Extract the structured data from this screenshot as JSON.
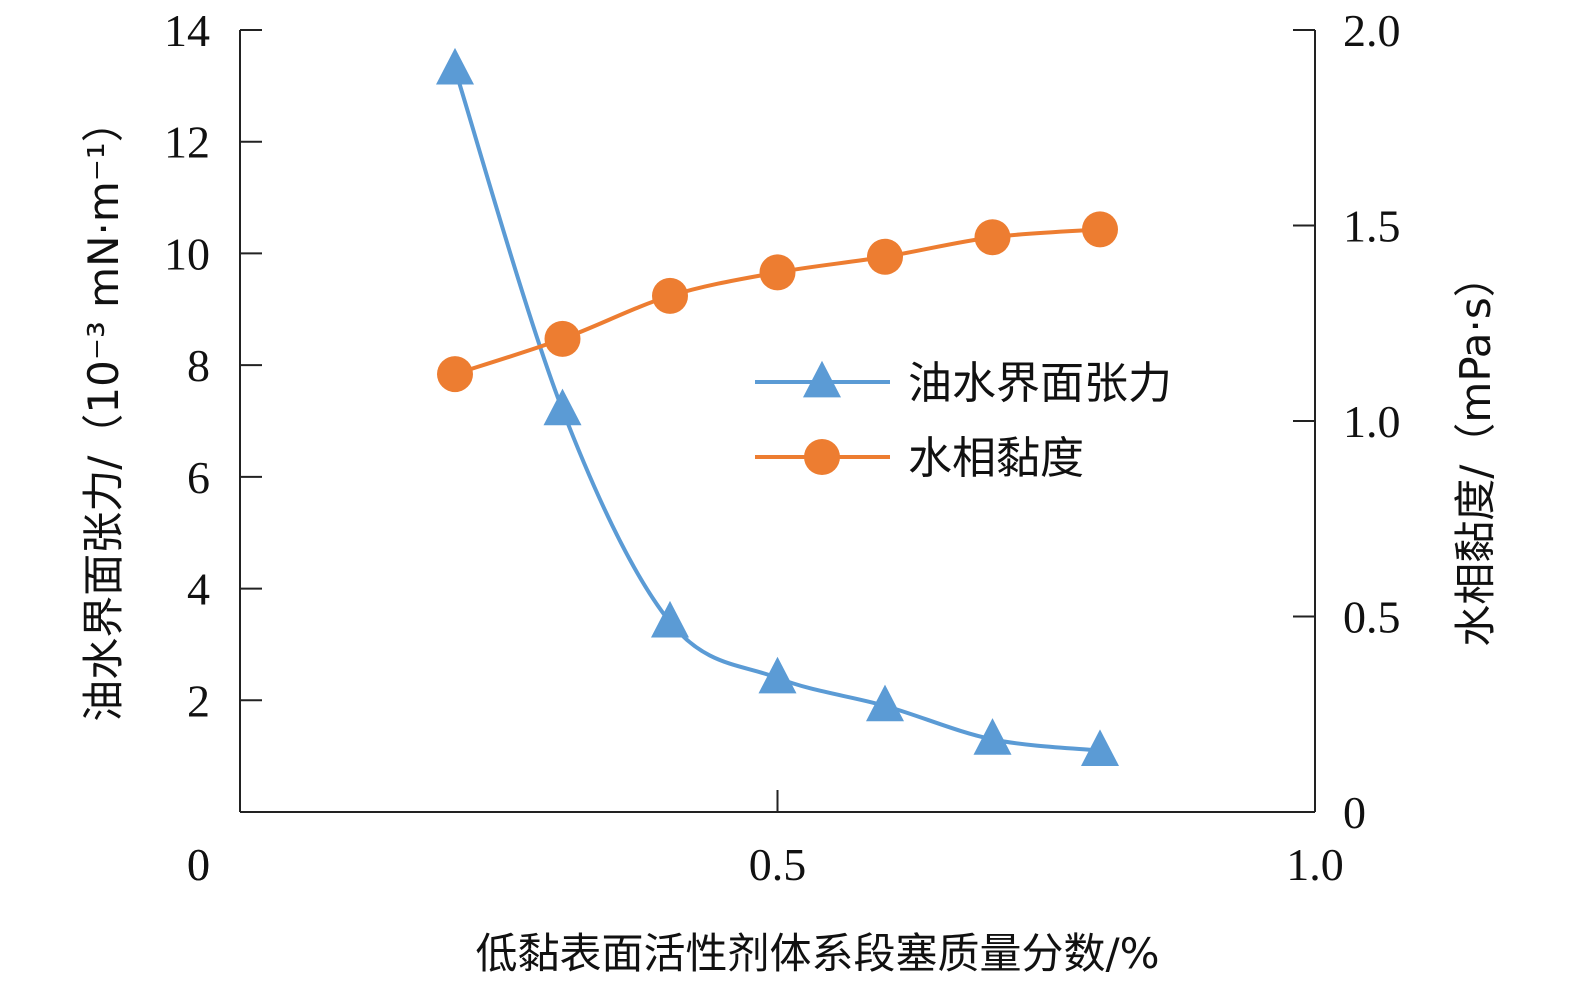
{
  "chart_data": {
    "type": "line",
    "xlabel": "低黏表面活性剂体系段塞质量分数/%",
    "ylabel_left": "油水界面张力/（10⁻³ mN·m⁻¹）",
    "ylabel_right": "水相黏度/（mPa·s）",
    "x_ticks": [
      "0",
      "0.5",
      "1.0"
    ],
    "y_left_ticks": [
      "0",
      "2",
      "4",
      "6",
      "8",
      "10",
      "12",
      "14"
    ],
    "y_right_ticks": [
      "0",
      "0.5",
      "1.0",
      "1.5",
      "2.0"
    ],
    "xlim": [
      0,
      1.0
    ],
    "ylim_left": [
      0,
      14
    ],
    "ylim_right": [
      0,
      2.0
    ],
    "legend_position": "center-right",
    "grid": false,
    "x": [
      0.2,
      0.3,
      0.4,
      0.5,
      0.6,
      0.7,
      0.8
    ],
    "series": [
      {
        "name": "油水界面张力",
        "axis": "left",
        "marker": "triangle",
        "color": "#5B9BD5",
        "values": [
          13.3,
          7.2,
          3.4,
          2.4,
          1.9,
          1.3,
          1.1
        ]
      },
      {
        "name": "水相黏度",
        "axis": "right",
        "marker": "circle",
        "color": "#ED7D31",
        "values": [
          1.12,
          1.21,
          1.32,
          1.38,
          1.42,
          1.47,
          1.49
        ]
      }
    ]
  }
}
